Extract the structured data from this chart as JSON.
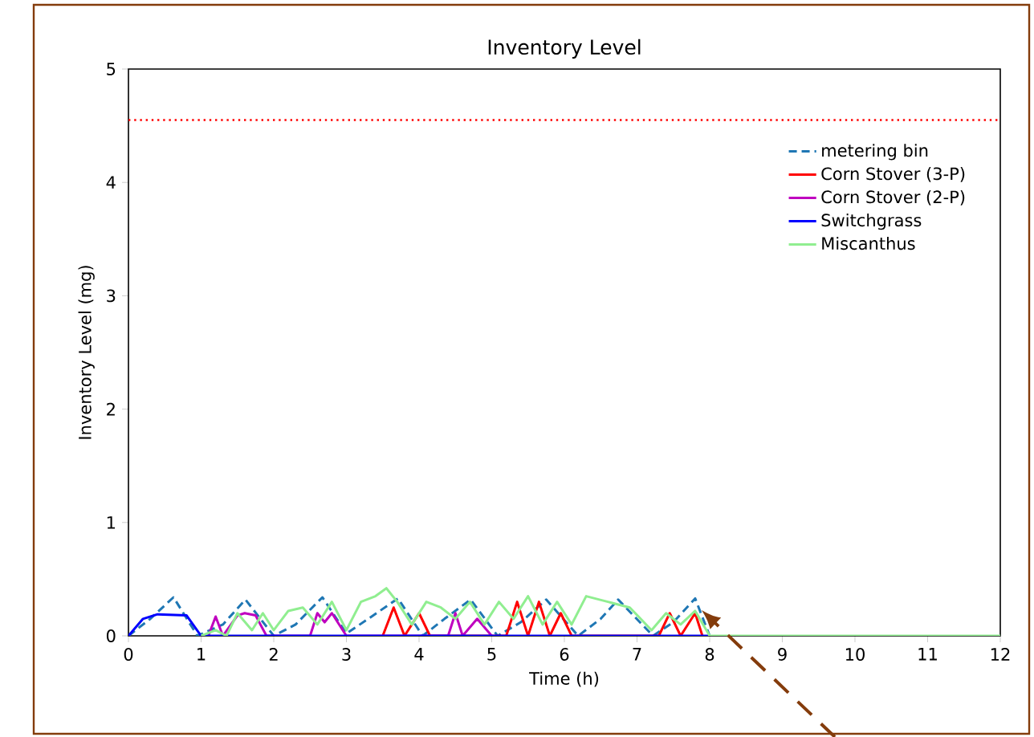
{
  "chart_data": {
    "type": "line",
    "title": "Inventory Level",
    "xlabel": "Time (h)",
    "ylabel": "Inventory Level (mg)",
    "xlim": [
      0,
      12
    ],
    "ylim": [
      0,
      5
    ],
    "xticks": [
      0,
      1,
      2,
      3,
      4,
      5,
      6,
      7,
      8,
      9,
      10,
      11,
      12
    ],
    "yticks": [
      0,
      1,
      2,
      3,
      4,
      5
    ],
    "legend": "top right",
    "ref_lines": [
      {
        "axis": "y",
        "value": 4.55,
        "color": "#ff0000",
        "line_style": "dotted"
      }
    ],
    "series": [
      {
        "name": "metering bin",
        "color": "#1f77b4",
        "line_style": "dashed",
        "x": [
          0,
          0.3,
          0.62,
          0.95,
          1.3,
          1.61,
          2.0,
          2.3,
          2.67,
          3.0,
          3.3,
          3.71,
          4.05,
          4.35,
          4.71,
          5.08,
          5.4,
          5.75,
          6.19,
          6.5,
          6.74,
          7.22,
          7.5,
          7.8,
          8.0
        ],
        "values": [
          0,
          0.15,
          0.34,
          0,
          0.1,
          0.32,
          0,
          0.1,
          0.34,
          0.02,
          0.15,
          0.33,
          0,
          0.15,
          0.32,
          0,
          0.12,
          0.32,
          0,
          0.15,
          0.32,
          0,
          0.12,
          0.33,
          0
        ]
      },
      {
        "name": "Corn Stover (3-P)",
        "color": "#ff0000",
        "line_style": "solid",
        "x": [
          3.5,
          3.65,
          3.8,
          4.0,
          4.15,
          4.3,
          5.2,
          5.35,
          5.5,
          5.65,
          5.8,
          5.95,
          6.1,
          7.3,
          7.45,
          7.6,
          7.8,
          7.9
        ],
        "values": [
          0,
          0.25,
          0,
          0.2,
          0,
          0,
          0,
          0.3,
          0,
          0.3,
          0,
          0.2,
          0,
          0,
          0.2,
          0,
          0.2,
          0
        ]
      },
      {
        "name": "Corn Stover (2-P)",
        "color": "#bf00bf",
        "line_style": "solid",
        "x": [
          1.1,
          1.2,
          1.3,
          1.5,
          1.6,
          1.75,
          1.9,
          2.5,
          2.6,
          2.7,
          2.8,
          3.0,
          3.2,
          4.4,
          4.5,
          4.6,
          4.8,
          5.0
        ],
        "values": [
          0,
          0.17,
          0,
          0.18,
          0.2,
          0.18,
          0,
          0,
          0.2,
          0.12,
          0.2,
          0,
          0,
          0,
          0.2,
          0,
          0.15,
          0
        ]
      },
      {
        "name": "Switchgrass",
        "color": "#0000ff",
        "line_style": "solid",
        "x": [
          0,
          0.2,
          0.4,
          0.8,
          1.0,
          8.0
        ],
        "values": [
          0,
          0.15,
          0.19,
          0.18,
          0,
          0
        ]
      },
      {
        "name": "Miscanthus",
        "color": "#90ee90",
        "line_style": "solid",
        "x": [
          1.0,
          1.2,
          1.35,
          1.5,
          1.7,
          1.85,
          2.0,
          2.2,
          2.4,
          2.6,
          2.8,
          3.0,
          3.2,
          3.4,
          3.55,
          3.7,
          3.9,
          4.1,
          4.3,
          4.5,
          4.7,
          4.9,
          5.1,
          5.3,
          5.5,
          5.7,
          5.9,
          6.1,
          6.3,
          6.6,
          6.9,
          7.2,
          7.4,
          7.6,
          7.8,
          8.0,
          12
        ],
        "values": [
          0,
          0.05,
          0,
          0.2,
          0.05,
          0.2,
          0.05,
          0.22,
          0.25,
          0.1,
          0.3,
          0.05,
          0.3,
          0.35,
          0.42,
          0.3,
          0.1,
          0.3,
          0.25,
          0.15,
          0.3,
          0.1,
          0.3,
          0.15,
          0.35,
          0.1,
          0.3,
          0.1,
          0.35,
          0.3,
          0.25,
          0.05,
          0.2,
          0.1,
          0.22,
          0,
          0
        ]
      }
    ]
  }
}
